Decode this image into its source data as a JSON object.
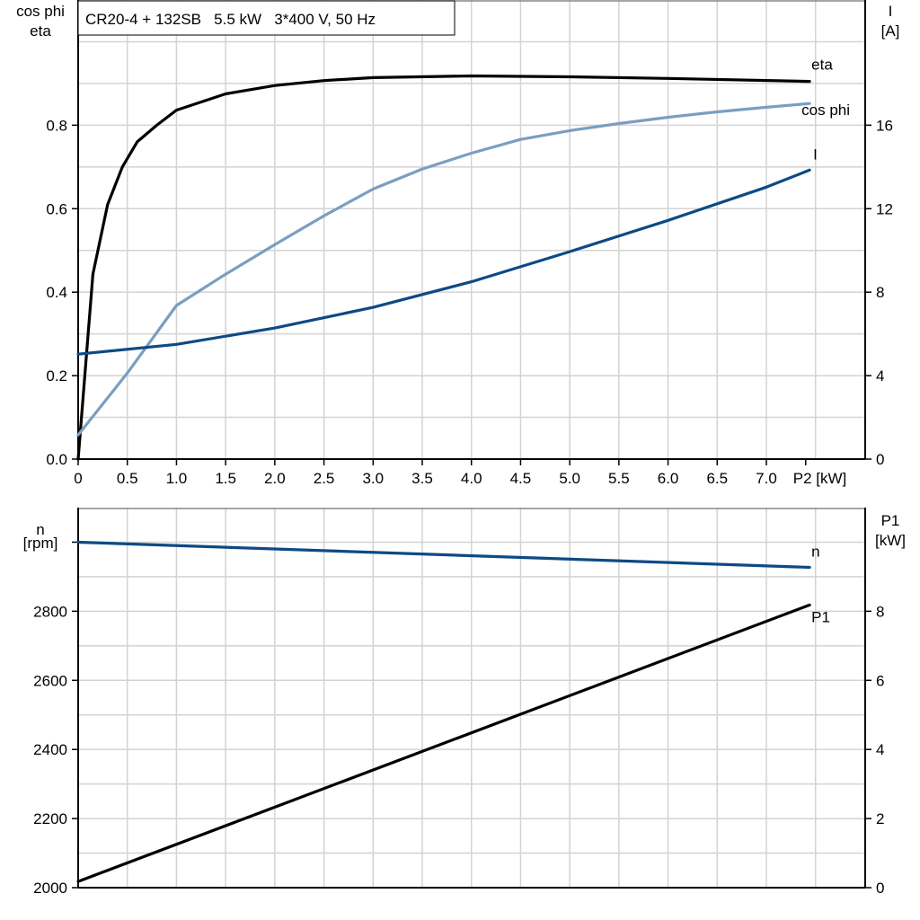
{
  "chart_data": [
    {
      "type": "line",
      "title": "CR20-4 + 132SB   5.5 kW   3*400 V, 50 Hz",
      "xlabel": "P2 [kW]",
      "ylabel_left": [
        "cos phi",
        "eta"
      ],
      "ylabel_right": [
        "I",
        "[A]"
      ],
      "xlim": [
        0,
        8.0
      ],
      "ylim_left": [
        0,
        1.1
      ],
      "ylim_right": [
        0,
        22
      ],
      "grid": true,
      "x_ticks": [
        "0",
        "0.5",
        "1.0",
        "1.5",
        "2.0",
        "2.5",
        "3.0",
        "3.5",
        "4.0",
        "4.5",
        "5.0",
        "5.5",
        "6.0",
        "6.5",
        "7.0",
        "P2 [kW]"
      ],
      "y_ticks_left": [
        "0.0",
        "0.2",
        "0.4",
        "0.6",
        "0.8"
      ],
      "y_ticks_right": [
        "0",
        "4",
        "8",
        "12",
        "16"
      ],
      "series": [
        {
          "name": "eta",
          "axis": "left",
          "color": "#000000",
          "x": [
            0,
            0.15,
            0.3,
            0.45,
            0.6,
            0.8,
            1.0,
            1.5,
            2.0,
            2.5,
            3.0,
            4.0,
            5.0,
            6.0,
            7.44
          ],
          "y": [
            0,
            0.443,
            0.61,
            0.7,
            0.76,
            0.8,
            0.836,
            0.875,
            0.895,
            0.907,
            0.914,
            0.918,
            0.916,
            0.912,
            0.905
          ]
        },
        {
          "name": "cos phi",
          "axis": "left",
          "color": "#7a9ec0",
          "x": [
            0,
            0.5,
            1.0,
            1.5,
            2.0,
            2.5,
            3.0,
            3.5,
            4.0,
            4.5,
            5.0,
            5.5,
            6.0,
            6.5,
            7.0,
            7.44
          ],
          "y": [
            0.058,
            0.206,
            0.368,
            0.443,
            0.514,
            0.583,
            0.647,
            0.695,
            0.733,
            0.766,
            0.787,
            0.804,
            0.819,
            0.832,
            0.843,
            0.852
          ]
        },
        {
          "name": "I",
          "axis": "right",
          "color": "#0d4a85",
          "x": [
            0,
            1.0,
            2.0,
            3.0,
            4.0,
            5.0,
            6.0,
            7.0,
            7.44
          ],
          "y": [
            5.03,
            5.5,
            6.28,
            7.27,
            8.5,
            9.94,
            11.44,
            13.03,
            13.85
          ]
        }
      ]
    },
    {
      "type": "line",
      "ylabel_left": [
        "n",
        "[rpm]"
      ],
      "ylabel_right": [
        "P1",
        "[kW]"
      ],
      "xlim": [
        0,
        8.0
      ],
      "ylim_left": [
        2000,
        3100
      ],
      "ylim_right": [
        0,
        11
      ],
      "grid": true,
      "y_ticks_left": [
        "2000",
        "2200",
        "2400",
        "2600",
        "2800"
      ],
      "y_ticks_right": [
        "0",
        "2",
        "4",
        "6",
        "8"
      ],
      "series": [
        {
          "name": "n",
          "axis": "left",
          "color": "#0d4a85",
          "x": [
            0,
            7.44
          ],
          "y": [
            3000,
            2927
          ]
        },
        {
          "name": "P1",
          "axis": "right",
          "color": "#000000",
          "x": [
            0,
            7.44
          ],
          "y": [
            0.18,
            8.18
          ]
        }
      ]
    }
  ]
}
